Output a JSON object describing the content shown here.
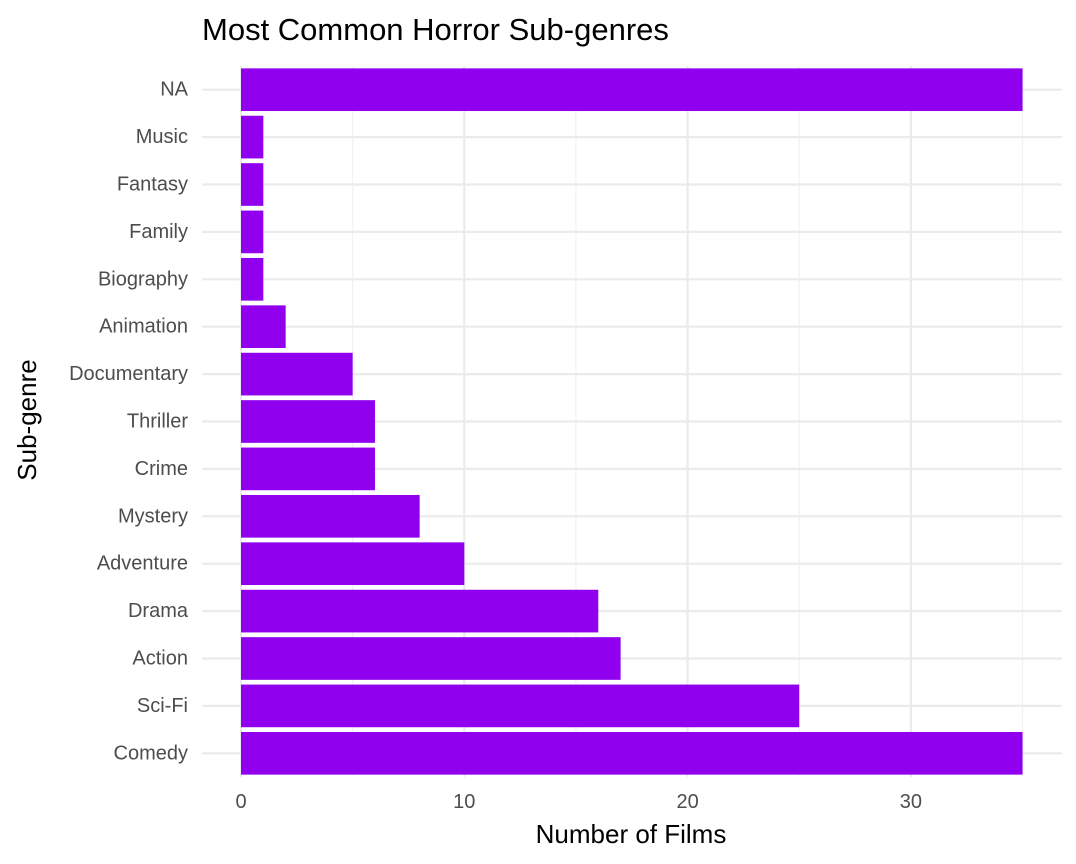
{
  "chart_data": {
    "type": "bar",
    "orientation": "horizontal",
    "title": "Most Common Horror Sub-genres",
    "xlabel": "Number of Films",
    "ylabel": "Sub-genre",
    "categories": [
      "Comedy",
      "Sci-Fi",
      "Action",
      "Drama",
      "Adventure",
      "Mystery",
      "Crime",
      "Thriller",
      "Documentary",
      "Animation",
      "Biography",
      "Family",
      "Fantasy",
      "Music",
      "NA"
    ],
    "values": [
      35,
      25,
      17,
      16,
      10,
      8,
      6,
      6,
      5,
      2,
      1,
      1,
      1,
      1,
      35
    ],
    "xlim": [
      0,
      37
    ],
    "xticks": [
      0,
      10,
      20,
      30
    ],
    "bar_color": "#9000ee",
    "grid": true,
    "legend": "none"
  }
}
